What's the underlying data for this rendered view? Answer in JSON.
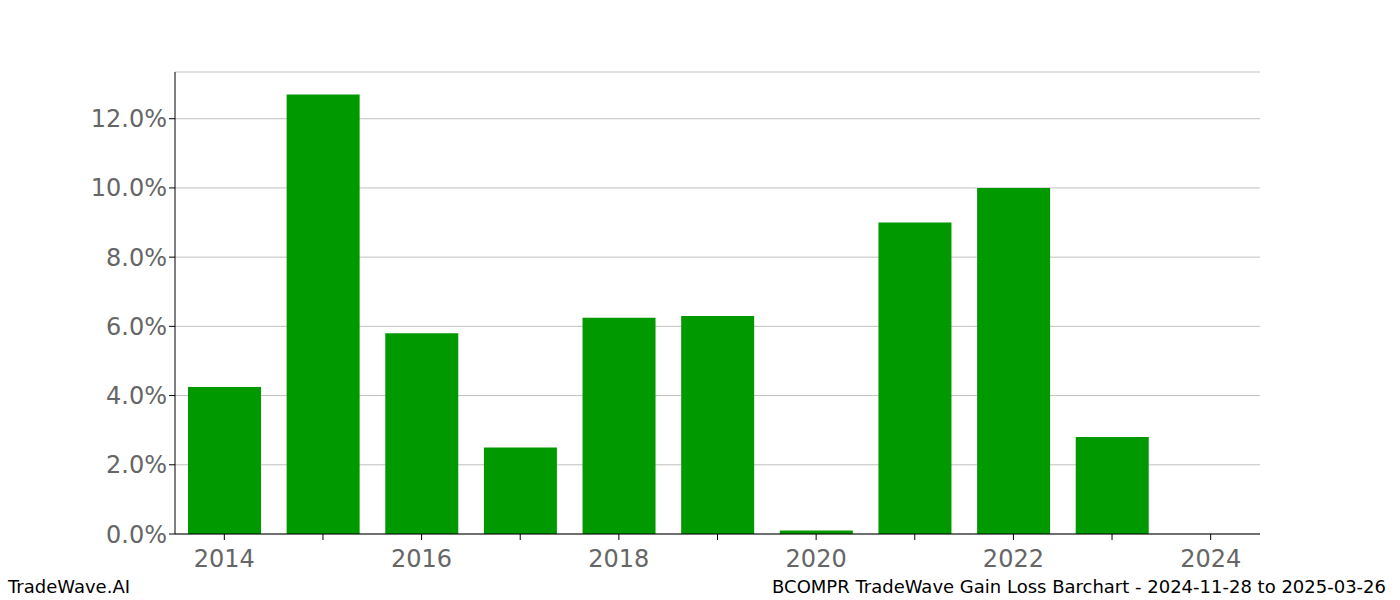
{
  "chart_data": {
    "type": "bar",
    "categories": [
      "2014",
      null,
      "2016",
      null,
      "2018",
      null,
      "2020",
      null,
      "2022",
      null,
      "2024"
    ],
    "values": [
      4.25,
      12.7,
      5.8,
      2.5,
      6.25,
      6.3,
      0.1,
      9.0,
      10.0,
      2.8,
      0
    ],
    "color": "#009900",
    "ylim": [
      0,
      13.35
    ],
    "yticks": [
      {
        "value": 0,
        "label": "0.0%"
      },
      {
        "value": 2,
        "label": "2.0%"
      },
      {
        "value": 4,
        "label": "4.0%"
      },
      {
        "value": 6,
        "label": "6.0%"
      },
      {
        "value": 8,
        "label": "8.0%"
      },
      {
        "value": 10,
        "label": "10.0%"
      },
      {
        "value": 12,
        "label": "12.0%"
      }
    ],
    "grid": true,
    "annotations": [
      "TradeWave.AI",
      "BCOMPR TradeWave Gain Loss Barchart - 2024-11-28 to 2025-03-26"
    ]
  }
}
